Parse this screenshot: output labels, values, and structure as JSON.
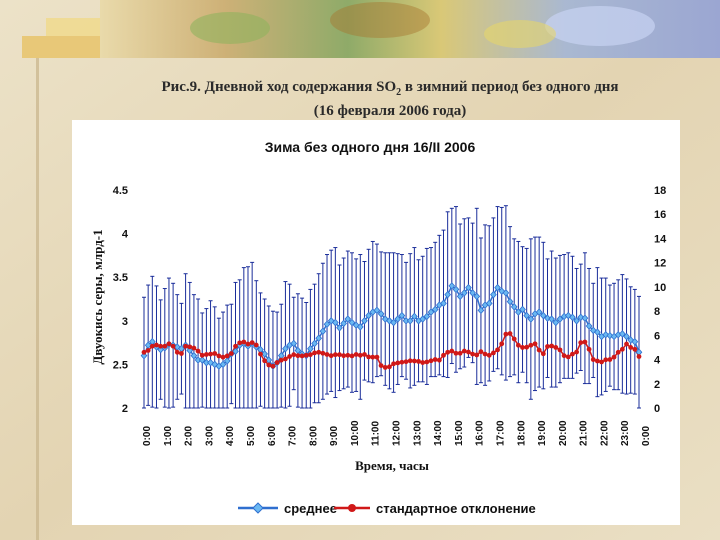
{
  "slide": {
    "title_line1_a": "Рис.9. Дневной ход содержания SO",
    "title_line1_sub": "2",
    "title_line1_b": " в зимний период без одного дня",
    "title_line2": "(16 февраля 2006 года)"
  },
  "colors": {
    "mean_series": "#2f6fcf",
    "mean_marker_fill": "#6ab8f2",
    "std_series": "#d01818",
    "error_bars": "#1a2d9a",
    "chart_background": "#ffffff",
    "slide_background": "#e8dcc0"
  },
  "chart_data": {
    "type": "line",
    "title": "Зима без одного дня 16/II 2006",
    "xlabel": "Время, часы",
    "ylabel": "Двуокись серы, млрд-1",
    "ylim": [
      2,
      4.5
    ],
    "y2lim": [
      0,
      18
    ],
    "y_ticks": [
      "2",
      "2.5",
      "3",
      "3.5",
      "4",
      "4.5"
    ],
    "y2_ticks": [
      "0",
      "2",
      "4",
      "6",
      "8",
      "10",
      "12",
      "14",
      "16",
      "18"
    ],
    "x_ticks": [
      "0:00",
      "1:00",
      "2:00",
      "3:00",
      "4:00",
      "5:00",
      "6:00",
      "7:00",
      "8:00",
      "9:00",
      "10:00",
      "11:00",
      "12:00",
      "13:00",
      "14:00",
      "15:00",
      "16:00",
      "17:00",
      "18:00",
      "19:00",
      "20:00",
      "21:00",
      "22:00",
      "23:00",
      "0:00"
    ],
    "x_points_per_hour": 4,
    "legend_position": "bottom",
    "series": [
      {
        "name": "среднее",
        "axis": "left",
        "marker": "diamond",
        "values": [
          2.6,
          2.72,
          2.76,
          2.7,
          2.67,
          2.69,
          2.73,
          2.72,
          2.7,
          2.68,
          2.72,
          2.66,
          2.6,
          2.55,
          2.55,
          2.52,
          2.52,
          2.5,
          2.48,
          2.5,
          2.54,
          2.62,
          2.65,
          2.72,
          2.74,
          2.71,
          2.74,
          2.7,
          2.67,
          2.62,
          2.55,
          2.48,
          2.52,
          2.6,
          2.68,
          2.72,
          2.74,
          2.66,
          2.62,
          2.6,
          2.68,
          2.74,
          2.8,
          2.88,
          2.96,
          3.0,
          2.98,
          2.92,
          2.97,
          3.02,
          2.98,
          2.95,
          2.93,
          3.0,
          3.06,
          3.1,
          3.12,
          3.08,
          3.02,
          3.0,
          2.98,
          3.02,
          3.06,
          3.0,
          3.0,
          3.05,
          3.0,
          3.02,
          3.05,
          3.1,
          3.13,
          3.18,
          3.2,
          3.3,
          3.4,
          3.36,
          3.28,
          3.32,
          3.38,
          3.32,
          3.28,
          3.12,
          3.18,
          3.2,
          3.3,
          3.38,
          3.34,
          3.32,
          3.22,
          3.16,
          3.1,
          3.13,
          3.06,
          3.02,
          3.08,
          3.1,
          3.06,
          3.03,
          3.02,
          2.98,
          3.02,
          3.05,
          3.06,
          3.04,
          3.0,
          3.04,
          3.03,
          2.94,
          2.89,
          2.87,
          2.82,
          2.84,
          2.83,
          2.82,
          2.84,
          2.85,
          2.82,
          2.78,
          2.76,
          2.64
        ]
      },
      {
        "name": "стандартное отклонение",
        "axis": "right",
        "marker": "circle",
        "values": [
          4.6,
          4.75,
          5.1,
          5.2,
          5.1,
          5.1,
          5.3,
          5.1,
          4.6,
          4.5,
          5.1,
          5.05,
          4.95,
          4.7,
          4.35,
          4.42,
          4.45,
          4.5,
          4.3,
          4.2,
          4.3,
          4.5,
          5.1,
          5.38,
          5.45,
          5.28,
          5.4,
          5.2,
          4.45,
          3.9,
          3.55,
          3.45,
          3.75,
          3.95,
          4.05,
          4.25,
          4.4,
          4.32,
          4.3,
          4.35,
          4.4,
          4.55,
          4.6,
          4.52,
          4.42,
          4.32,
          4.4,
          4.4,
          4.32,
          4.35,
          4.3,
          4.42,
          4.35,
          4.42,
          4.22,
          4.2,
          4.2,
          3.5,
          3.35,
          3.4,
          3.65,
          3.72,
          3.78,
          3.82,
          3.9,
          3.88,
          3.85,
          3.75,
          3.8,
          3.9,
          4.0,
          3.95,
          4.35,
          4.6,
          4.7,
          4.52,
          4.52,
          4.7,
          4.62,
          4.45,
          4.38,
          4.65,
          4.45,
          4.35,
          4.55,
          4.8,
          5.3,
          6.1,
          6.15,
          5.7,
          5.18,
          5.0,
          5.02,
          5.18,
          5.3,
          4.78,
          4.48,
          5.08,
          5.12,
          5.0,
          4.8,
          4.32,
          4.22,
          4.45,
          4.62,
          5.4,
          5.45,
          4.85,
          4.0,
          3.88,
          3.8,
          3.98,
          4.0,
          4.2,
          4.6,
          4.85,
          5.28,
          5.0,
          4.85,
          4.25
        ]
      }
    ],
    "error_bars": {
      "applies_to": "среднее",
      "values": [
        0.67,
        0.69,
        0.75,
        0.7,
        0.57,
        0.68,
        0.76,
        0.71,
        0.6,
        0.52,
        0.82,
        0.78,
        0.7,
        0.7,
        0.54,
        0.62,
        0.71,
        0.66,
        0.55,
        0.6,
        0.64,
        0.57,
        0.79,
        0.75,
        0.87,
        0.91,
        0.93,
        0.76,
        0.65,
        0.63,
        0.62,
        0.63,
        0.58,
        0.59,
        0.77,
        0.7,
        0.53,
        0.65,
        0.64,
        0.61,
        0.68,
        0.68,
        0.74,
        0.78,
        0.8,
        0.81,
        0.86,
        0.72,
        0.75,
        0.78,
        0.8,
        0.76,
        0.83,
        0.68,
        0.76,
        0.81,
        0.76,
        0.71,
        0.76,
        0.78,
        0.8,
        0.75,
        0.7,
        0.67,
        0.77,
        0.79,
        0.7,
        0.72,
        0.78,
        0.74,
        0.77,
        0.8,
        0.84,
        0.95,
        0.89,
        0.95,
        0.83,
        0.85,
        0.8,
        0.8,
        1.01,
        0.83,
        0.92,
        0.89,
        0.88,
        0.93,
        0.96,
        1.0,
        0.86,
        0.78,
        0.81,
        0.72,
        0.77,
        0.92,
        0.88,
        0.86,
        0.84,
        0.68,
        0.78,
        0.74,
        0.73,
        0.71,
        0.72,
        0.7,
        0.6,
        0.61,
        0.75,
        0.66,
        0.54,
        0.74,
        0.67,
        0.65,
        0.58,
        0.61,
        0.63,
        0.68,
        0.66,
        0.61,
        0.6,
        0.64
      ]
    }
  }
}
